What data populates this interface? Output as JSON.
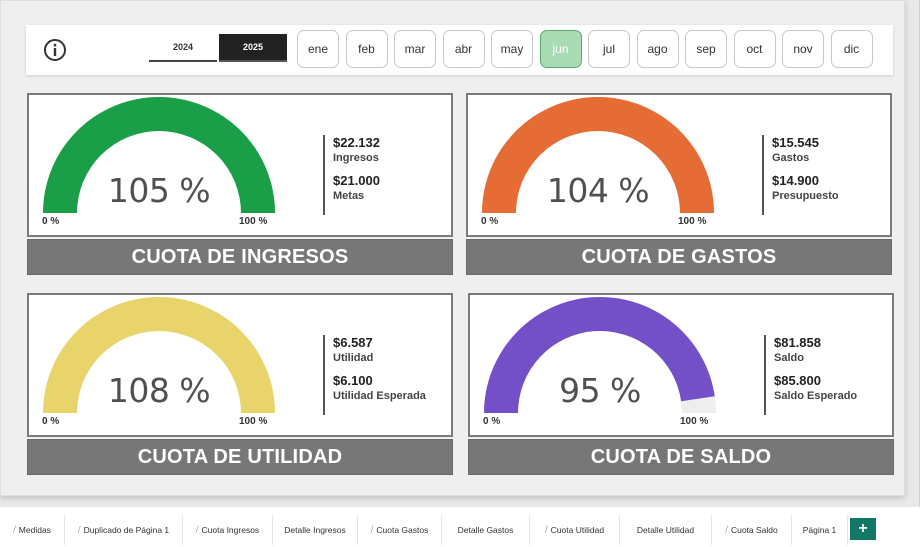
{
  "filters": {
    "info_icon": "info-circle-icon",
    "years": [
      {
        "label": "2024",
        "selected": false
      },
      {
        "label": "2025",
        "selected": true
      }
    ],
    "months": [
      "ene",
      "feb",
      "mar",
      "abr",
      "may",
      "jun",
      "jul",
      "ago",
      "sep",
      "oct",
      "nov",
      "dic"
    ],
    "selected_month": "jun"
  },
  "cards": [
    {
      "title": "CUOTA DE INGRESOS",
      "percent_label": "105 %",
      "gauge_fraction": 1.0,
      "color": "#1a9e47",
      "min_label": "0 %",
      "max_label": "100 %",
      "value1": "$22.132",
      "label1": "Ingresos",
      "value2": "$21.000",
      "label2": "Metas"
    },
    {
      "title": "CUOTA DE GASTOS",
      "percent_label": "104 %",
      "gauge_fraction": 1.0,
      "color": "#e56c35",
      "min_label": "0 %",
      "max_label": "100 %",
      "value1": "$15.545",
      "label1": "Gastos",
      "value2": "$14.900",
      "label2": "Presupuesto"
    },
    {
      "title": "CUOTA DE UTILIDAD",
      "percent_label": "108 %",
      "gauge_fraction": 1.0,
      "color": "#e8d46b",
      "min_label": "0 %",
      "max_label": "100 %",
      "value1": "$6.587",
      "label1": "Utilidad",
      "value2": "$6.100",
      "label2": "Utilidad Esperada"
    },
    {
      "title": "CUOTA DE SALDO",
      "percent_label": "95 %",
      "gauge_fraction": 0.954,
      "color": "#7450c8",
      "min_label": "0 %",
      "max_label": "100 %",
      "value1": "$81.858",
      "label1": "Saldo",
      "value2": "$85.800",
      "label2": "Saldo Esperado"
    }
  ],
  "tabs": [
    {
      "label": "Medidas",
      "hidden": true
    },
    {
      "label": "Duplicado de Página 1",
      "hidden": true
    },
    {
      "label": "Cuota Ingresos",
      "hidden": true
    },
    {
      "label": "Detalle Ingresos",
      "hidden": false
    },
    {
      "label": "Cuota Gastos",
      "hidden": true
    },
    {
      "label": "Detalle Gastos",
      "hidden": false
    },
    {
      "label": "Cuota Utilidad",
      "hidden": true
    },
    {
      "label": "Detalle Utilidad",
      "hidden": false
    },
    {
      "label": "Cuota Saldo",
      "hidden": true
    },
    {
      "label": "Página 1",
      "hidden": false
    }
  ],
  "add_tab_label": "+"
}
